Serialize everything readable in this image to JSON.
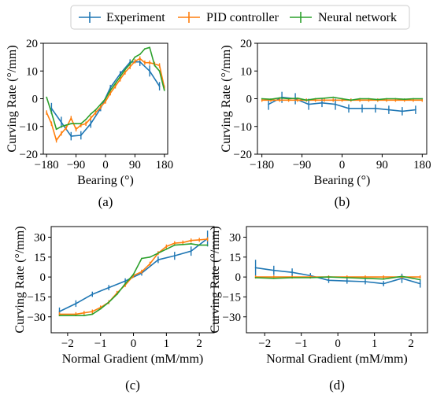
{
  "legend": {
    "entries": [
      {
        "name": "Experiment",
        "color": "#1f77b4"
      },
      {
        "name": "PID controller",
        "color": "#ff7f0e"
      },
      {
        "name": "Neural network",
        "color": "#2ca02c"
      }
    ],
    "placement": "top-center"
  },
  "chart_data": [
    {
      "type": "line",
      "label": "(a)",
      "xlabel": "Bearing (°)",
      "ylabel": "Curving Rate (°/mm)",
      "xlim": [
        -190,
        190
      ],
      "ylim": [
        -20,
        20
      ],
      "xticks": [
        -180,
        -90,
        0,
        90,
        180
      ],
      "yticks": [
        -20,
        -10,
        0,
        10,
        20
      ],
      "grid": false,
      "series": [
        {
          "name": "Experiment",
          "x": [
            -165,
            -135,
            -105,
            -75,
            -45,
            -15,
            15,
            45,
            75,
            105,
            135,
            165
          ],
          "y": [
            -3.5,
            -8.5,
            -13.5,
            -13.2,
            -9.0,
            -3.5,
            4.0,
            9.0,
            13.2,
            13.3,
            10.0,
            4.5
          ],
          "err": [
            2.0,
            2.0,
            1.5,
            1.5,
            1.5,
            1.0,
            1.0,
            1.0,
            1.0,
            1.5,
            2.0,
            1.5
          ]
        },
        {
          "name": "PID controller",
          "x": [
            -180,
            -165,
            -150,
            -135,
            -120,
            -105,
            -90,
            -75,
            -60,
            -45,
            -30,
            -15,
            0,
            15,
            30,
            45,
            60,
            75,
            90,
            105,
            120,
            135,
            150,
            165,
            180
          ],
          "y": [
            -5.0,
            -9.0,
            -15.0,
            -12.5,
            -10.5,
            -7.0,
            -11.0,
            -9.5,
            -9.0,
            -7.0,
            -5.0,
            -3.0,
            -1.0,
            2.0,
            4.5,
            7.0,
            9.5,
            11.5,
            13.5,
            14.5,
            13.0,
            13.0,
            12.5,
            12.0,
            4.0
          ],
          "err": [
            0.8,
            0.8,
            0.8,
            0.8,
            0.8,
            0.8,
            0.8,
            0.8,
            0.8,
            0.8,
            0.8,
            0.8,
            0.8,
            0.8,
            0.8,
            0.8,
            0.8,
            0.8,
            0.8,
            0.8,
            0.8,
            0.8,
            0.8,
            0.8,
            0.8
          ]
        },
        {
          "name": "Neural network",
          "x": [
            -180,
            -165,
            -150,
            -135,
            -120,
            -105,
            -90,
            -75,
            -60,
            -45,
            -30,
            -15,
            0,
            15,
            30,
            45,
            60,
            75,
            90,
            105,
            120,
            135,
            150,
            165,
            180
          ],
          "y": [
            0.5,
            -5.0,
            -11.0,
            -10.0,
            -9.5,
            -9.0,
            -9.0,
            -9.0,
            -7.5,
            -5.5,
            -4.0,
            -2.0,
            0.0,
            3.0,
            5.5,
            8.0,
            10.5,
            12.5,
            15.0,
            16.0,
            18.0,
            18.5,
            12.0,
            10.0,
            3.0
          ]
        }
      ]
    },
    {
      "type": "line",
      "label": "(b)",
      "xlabel": "Bearing (°)",
      "ylabel": "Curving Rate (°/mm)",
      "xlim": [
        -190,
        190
      ],
      "ylim": [
        -20,
        20
      ],
      "xticks": [
        -180,
        -90,
        0,
        90,
        180
      ],
      "yticks": [
        -20,
        -10,
        0,
        10,
        20
      ],
      "grid": false,
      "series": [
        {
          "name": "Experiment",
          "x": [
            -165,
            -135,
            -105,
            -75,
            -45,
            -15,
            15,
            45,
            75,
            105,
            135,
            165
          ],
          "y": [
            -2.0,
            0.5,
            0.0,
            -2.0,
            -1.5,
            -2.0,
            -3.5,
            -3.5,
            -3.5,
            -4.0,
            -4.5,
            -4.0
          ],
          "err": [
            2.0,
            2.0,
            2.0,
            2.0,
            1.5,
            2.0,
            1.5,
            1.5,
            1.5,
            1.5,
            1.5,
            1.5
          ]
        },
        {
          "name": "PID controller",
          "x": [
            -180,
            -160,
            -140,
            -120,
            -100,
            -80,
            -60,
            -40,
            -20,
            0,
            20,
            40,
            60,
            80,
            100,
            120,
            140,
            160,
            180
          ],
          "y": [
            -0.5,
            -0.5,
            -0.5,
            -0.5,
            -0.5,
            -0.5,
            -0.5,
            -0.5,
            -0.5,
            -0.5,
            -0.5,
            -0.5,
            -0.5,
            -0.5,
            -0.5,
            -0.5,
            -0.5,
            -0.5,
            -0.5
          ],
          "err": [
            0.6,
            0.6,
            0.6,
            0.6,
            0.6,
            0.6,
            0.6,
            0.6,
            0.6,
            0.6,
            0.6,
            0.6,
            0.6,
            0.6,
            0.6,
            0.6,
            0.6,
            0.6,
            0.6
          ]
        },
        {
          "name": "Neural network",
          "x": [
            -180,
            -160,
            -140,
            -120,
            -100,
            -80,
            -60,
            -40,
            -20,
            0,
            20,
            40,
            60,
            80,
            100,
            120,
            140,
            160,
            180
          ],
          "y": [
            0.0,
            -0.2,
            0.3,
            0.0,
            0.2,
            -0.5,
            0.0,
            0.2,
            0.5,
            0.0,
            -0.5,
            0.0,
            0.0,
            -0.3,
            0.0,
            0.0,
            -0.2,
            0.0,
            0.0
          ]
        }
      ]
    },
    {
      "type": "line",
      "label": "(c)",
      "xlabel": "Normal Gradient (mM/mm)",
      "ylabel": "Curving Rate (°/mm)",
      "xlim": [
        -2.5,
        2.45
      ],
      "ylim": [
        -42,
        38
      ],
      "xticks": [
        -2,
        -1,
        0,
        1,
        2
      ],
      "yticks": [
        -30,
        -15,
        0,
        15,
        30
      ],
      "grid": false,
      "series": [
        {
          "name": "Experiment",
          "x": [
            -2.25,
            -1.75,
            -1.25,
            -0.75,
            -0.25,
            0.25,
            0.75,
            1.25,
            1.75,
            2.25
          ],
          "y": [
            -26.0,
            -20.0,
            -13.0,
            -8.0,
            -3.0,
            3.0,
            13.0,
            16.0,
            19.5,
            29.0
          ],
          "err": [
            3.0,
            2.5,
            2.0,
            2.0,
            2.0,
            2.0,
            2.5,
            3.0,
            3.5,
            6.0
          ]
        },
        {
          "name": "PID controller",
          "x": [
            -2.25,
            -1.75,
            -1.5,
            -1.25,
            -1.0,
            -0.75,
            -0.5,
            -0.25,
            0.0,
            0.25,
            0.5,
            0.75,
            1.0,
            1.25,
            1.5,
            1.75,
            2.0,
            2.25
          ],
          "y": [
            -28.0,
            -28.0,
            -27.0,
            -26.0,
            -23.0,
            -19.0,
            -12.0,
            -6.0,
            1.0,
            4.0,
            10.0,
            18.0,
            23.0,
            25.5,
            26.0,
            27.5,
            28.0,
            28.5
          ],
          "err": [
            1.5,
            1.5,
            1.5,
            1.5,
            1.5,
            1.5,
            1.5,
            1.5,
            1.5,
            1.5,
            1.5,
            1.5,
            1.5,
            1.5,
            1.5,
            1.5,
            1.5,
            1.5
          ]
        },
        {
          "name": "Neural network",
          "x": [
            -2.25,
            -1.75,
            -1.5,
            -1.25,
            -1.0,
            -0.75,
            -0.5,
            -0.25,
            0.0,
            0.25,
            0.5,
            0.75,
            1.0,
            1.25,
            1.5,
            1.75,
            2.0,
            2.25
          ],
          "y": [
            -29.0,
            -29.0,
            -29.0,
            -28.0,
            -24.0,
            -19.0,
            -13.0,
            -5.0,
            2.0,
            14.0,
            15.0,
            18.0,
            21.0,
            24.0,
            24.5,
            25.0,
            24.0,
            24.0
          ]
        }
      ]
    },
    {
      "type": "line",
      "label": "(d)",
      "xlabel": "Normal Gradient (mM/mm)",
      "ylabel": "Curving Rate (°/mm)",
      "xlim": [
        -2.5,
        2.45
      ],
      "ylim": [
        -42,
        38
      ],
      "xticks": [
        -2,
        -1,
        0,
        1,
        2
      ],
      "yticks": [
        -30,
        -15,
        0,
        15,
        30
      ],
      "grid": false,
      "series": [
        {
          "name": "Experiment",
          "x": [
            -2.25,
            -1.75,
            -1.25,
            -0.75,
            -0.25,
            0.25,
            0.75,
            1.25,
            1.75,
            2.25
          ],
          "y": [
            7.0,
            5.0,
            3.5,
            1.0,
            -2.5,
            -3.0,
            -3.5,
            -5.0,
            -1.0,
            -5.0
          ],
          "err": [
            6.0,
            3.5,
            3.0,
            2.0,
            2.0,
            2.0,
            2.0,
            2.0,
            3.5,
            3.0
          ]
        },
        {
          "name": "PID controller",
          "x": [
            -2.25,
            -1.75,
            -1.25,
            -0.75,
            -0.25,
            0.25,
            0.75,
            1.25,
            1.75,
            2.25
          ],
          "y": [
            0.0,
            0.0,
            0.0,
            0.0,
            0.0,
            0.0,
            0.0,
            0.0,
            0.0,
            0.0
          ],
          "err": [
            1.2,
            1.2,
            1.2,
            1.2,
            1.2,
            1.2,
            1.2,
            1.2,
            1.2,
            1.2
          ]
        },
        {
          "name": "Neural network",
          "x": [
            -2.25,
            -1.75,
            -1.25,
            -0.75,
            -0.25,
            0.25,
            0.75,
            1.25,
            1.75,
            2.25
          ],
          "y": [
            -0.5,
            -1.0,
            -0.5,
            -0.5,
            0.0,
            -0.5,
            -1.0,
            -1.5,
            0.5,
            -2.0
          ]
        }
      ]
    }
  ]
}
